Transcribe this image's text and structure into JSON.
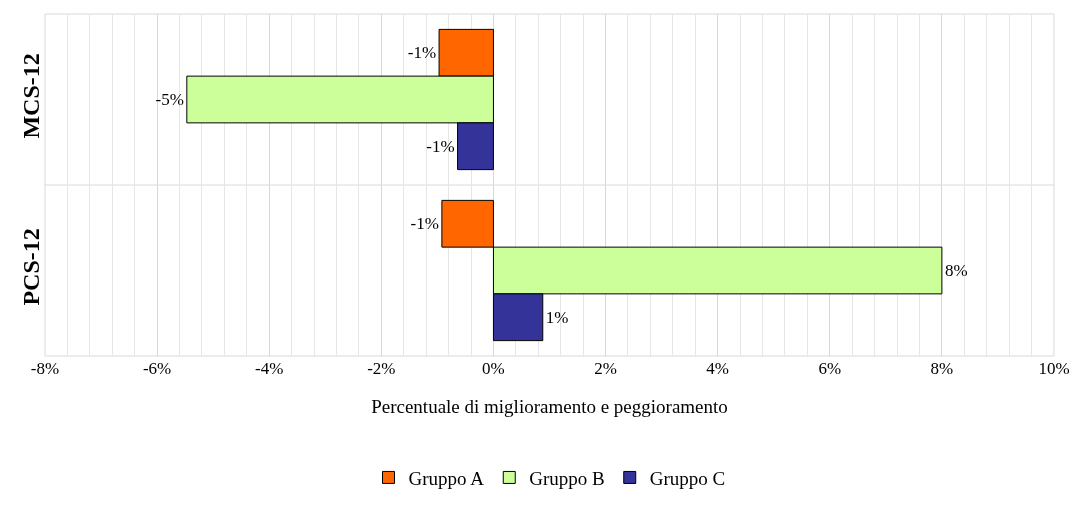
{
  "chart_data": {
    "type": "bar",
    "orientation": "horizontal",
    "xlabel": "Percentuale di miglioramento e peggioramento",
    "categories": [
      "MCS-12",
      "PCS-12"
    ],
    "series": [
      {
        "name": "Gruppo A",
        "color": "#ff6600",
        "values": [
          -0.97,
          -0.92
        ],
        "value_labels": [
          "-1%",
          "-1%"
        ]
      },
      {
        "name": "Gruppo B",
        "color": "#ccff99",
        "values": [
          -5.47,
          8.0
        ],
        "value_labels": [
          "-5%",
          "8%"
        ]
      },
      {
        "name": "Gruppo C",
        "color": "#333399",
        "values": [
          -0.64,
          0.88
        ],
        "value_labels": [
          "-1%",
          "1%"
        ]
      }
    ],
    "xlim": [
      -8,
      10
    ],
    "xticks": [
      {
        "value": -8,
        "label": "-8%"
      },
      {
        "value": -6,
        "label": "-6%"
      },
      {
        "value": -4,
        "label": "-4%"
      },
      {
        "value": -2,
        "label": "-2%"
      },
      {
        "value": 0,
        "label": "0%"
      },
      {
        "value": 2,
        "label": "2%"
      },
      {
        "value": 4,
        "label": "4%"
      },
      {
        "value": 6,
        "label": "6%"
      },
      {
        "value": 8,
        "label": "8%"
      },
      {
        "value": 10,
        "label": "10%"
      }
    ],
    "grid": true,
    "legend": "bottom"
  }
}
